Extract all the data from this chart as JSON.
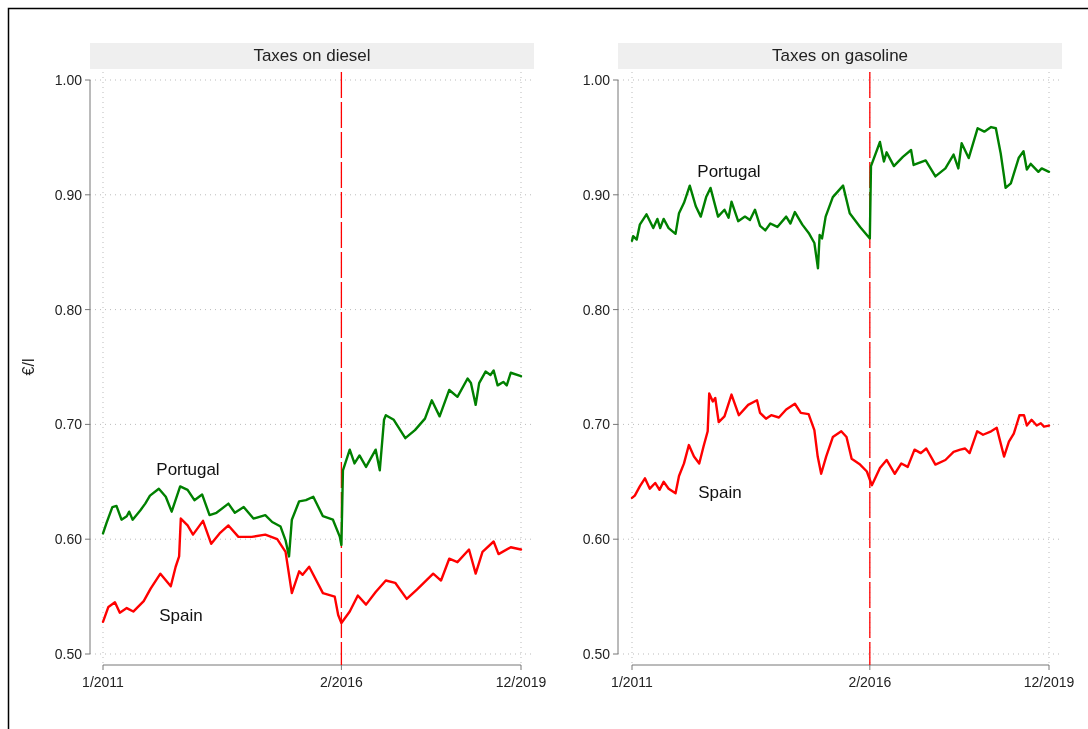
{
  "chart_data": [
    {
      "type": "line",
      "title": "Taxes on diesel",
      "ylabel": "€/l",
      "xlim": [
        "2011-01",
        "2019-12"
      ],
      "xticks": [
        {
          "value": "2011-01",
          "label": "1/2011"
        },
        {
          "value": "2016-02",
          "label": "2/2016"
        },
        {
          "value": "2019-12",
          "label": "12/2019"
        }
      ],
      "ylim": [
        0.5,
        1.0
      ],
      "yticks": [
        {
          "value": 0.5,
          "label": "0.50"
        },
        {
          "value": 0.6,
          "label": "0.60"
        },
        {
          "value": 0.7,
          "label": "0.70"
        },
        {
          "value": 0.8,
          "label": "0.80"
        },
        {
          "value": 0.9,
          "label": "0.90"
        },
        {
          "value": 1.0,
          "label": "1.00"
        }
      ],
      "grid": true,
      "ref_lines": [
        {
          "axis": "x",
          "value": "2016-02",
          "color": "#ff0000",
          "line_style": "dashed"
        }
      ],
      "series": [
        {
          "name": "Portugal",
          "color": "#008000",
          "x": [
            "2011-01-01",
            "2011-01-28",
            "2011-03-15",
            "2011-04-16",
            "2011-05-25",
            "2011-07-05",
            "2011-07-24",
            "2011-08-20",
            "2011-10-18",
            "2011-11-26",
            "2012-01-02",
            "2012-03-11",
            "2012-05-04",
            "2012-06-19",
            "2012-08-24",
            "2012-10-21",
            "2012-12-13",
            "2013-02-11",
            "2013-04-10",
            "2013-06-03",
            "2013-09-04",
            "2013-10-24",
            "2014-01-01",
            "2014-03-18",
            "2014-06-18",
            "2014-08-11",
            "2014-10-15",
            "2014-11-23",
            "2014-12-20",
            "2015-01-11",
            "2015-03-09",
            "2015-05-01",
            "2015-06-27",
            "2015-09-10",
            "2015-11-27",
            "2016-01-20",
            "2016-02-01",
            "2016-02-13",
            "2016-04-06",
            "2016-05-13",
            "2016-06-21",
            "2016-08-11",
            "2016-10-25",
            "2016-11-26",
            "2016-12-29",
            "2017-01-12",
            "2017-03-15",
            "2017-06-13",
            "2017-08-27",
            "2017-11-13",
            "2018-01-05",
            "2018-03-07",
            "2018-05-21",
            "2018-07-24",
            "2018-10-11",
            "2018-11-06",
            "2018-12-13",
            "2019-01-09",
            "2019-02-28",
            "2019-04-07",
            "2019-05-02",
            "2019-06-02",
            "2019-07-16",
            "2019-08-12",
            "2019-09-12",
            "2019-12-01"
          ],
          "values": [
            0.605,
            0.614,
            0.628,
            0.629,
            0.617,
            0.62,
            0.624,
            0.617,
            0.625,
            0.631,
            0.638,
            0.644,
            0.637,
            0.624,
            0.646,
            0.643,
            0.634,
            0.639,
            0.621,
            0.623,
            0.631,
            0.623,
            0.628,
            0.618,
            0.621,
            0.615,
            0.611,
            0.599,
            0.585,
            0.617,
            0.633,
            0.634,
            0.637,
            0.62,
            0.617,
            0.602,
            0.595,
            0.66,
            0.678,
            0.666,
            0.673,
            0.663,
            0.678,
            0.66,
            0.704,
            0.708,
            0.704,
            0.688,
            0.695,
            0.705,
            0.721,
            0.707,
            0.73,
            0.724,
            0.74,
            0.736,
            0.717,
            0.736,
            0.746,
            0.743,
            0.747,
            0.734,
            0.737,
            0.734,
            0.745,
            0.742
          ]
        },
        {
          "name": "Spain",
          "color": "#ff0000",
          "x": [
            "2011-01-01",
            "2011-02-12",
            "2011-04-04",
            "2011-05-12",
            "2011-07-05",
            "2011-08-25",
            "2011-11-14",
            "2012-01-07",
            "2012-03-23",
            "2012-06-12",
            "2012-07-20",
            "2012-08-16",
            "2012-08-29",
            "2012-10-21",
            "2012-12-02",
            "2013-02-18",
            "2013-04-23",
            "2013-06-27",
            "2013-09-04",
            "2013-11-21",
            "2014-03-05",
            "2014-06-18",
            "2014-09-19",
            "2014-11-23",
            "2015-01-11",
            "2015-03-09",
            "2015-04-05",
            "2015-05-26",
            "2015-09-10",
            "2015-12-11",
            "2016-01-07",
            "2016-02-01",
            "2016-04-06",
            "2016-06-08",
            "2016-08-11",
            "2016-10-25",
            "2017-01-12",
            "2017-03-26",
            "2017-06-24",
            "2017-09-11",
            "2018-01-16",
            "2018-03-18",
            "2018-05-21",
            "2018-07-24",
            "2018-10-22",
            "2018-12-13",
            "2019-02-04",
            "2019-05-02",
            "2019-06-09",
            "2019-09-12",
            "2019-12-01"
          ],
          "values": [
            0.528,
            0.541,
            0.545,
            0.536,
            0.54,
            0.537,
            0.546,
            0.557,
            0.57,
            0.559,
            0.576,
            0.585,
            0.618,
            0.612,
            0.604,
            0.616,
            0.596,
            0.605,
            0.612,
            0.602,
            0.602,
            0.604,
            0.6,
            0.589,
            0.553,
            0.572,
            0.569,
            0.576,
            0.553,
            0.55,
            0.534,
            0.527,
            0.537,
            0.551,
            0.543,
            0.554,
            0.564,
            0.562,
            0.548,
            0.556,
            0.57,
            0.564,
            0.583,
            0.58,
            0.591,
            0.57,
            0.589,
            0.598,
            0.587,
            0.593,
            0.591
          ]
        }
      ]
    },
    {
      "type": "line",
      "title": "Taxes on gasoline",
      "xlim": [
        "2011-01",
        "2019-12"
      ],
      "xticks": [
        {
          "value": "2011-01",
          "label": "1/2011"
        },
        {
          "value": "2016-02",
          "label": "2/2016"
        },
        {
          "value": "2019-12",
          "label": "12/2019"
        }
      ],
      "ylim": [
        0.5,
        1.0
      ],
      "yticks": [
        {
          "value": 0.5,
          "label": "0.50"
        },
        {
          "value": 0.6,
          "label": "0.60"
        },
        {
          "value": 0.7,
          "label": "0.70"
        },
        {
          "value": 0.8,
          "label": "0.80"
        },
        {
          "value": 0.9,
          "label": "0.90"
        },
        {
          "value": 1.0,
          "label": "1.00"
        }
      ],
      "grid": true,
      "ref_lines": [
        {
          "axis": "x",
          "value": "2016-02",
          "color": "#ff0000",
          "line_style": "dashed"
        }
      ],
      "series": [
        {
          "name": "Portugal",
          "color": "#008000",
          "x": [
            "2011-01-01",
            "2011-01-10",
            "2011-02-07",
            "2011-03-03",
            "2011-04-24",
            "2011-06-16",
            "2011-07-18",
            "2011-08-09",
            "2011-09-05",
            "2011-10-14",
            "2011-12-07",
            "2012-01-03",
            "2012-02-11",
            "2012-03-27",
            "2012-05-13",
            "2012-06-21",
            "2012-08-02",
            "2012-09-05",
            "2012-11-03",
            "2012-12-23",
            "2013-01-24",
            "2013-02-16",
            "2013-04-09",
            "2013-06-01",
            "2013-07-10",
            "2013-08-18",
            "2013-09-27",
            "2013-11-07",
            "2013-12-16",
            "2014-02-09",
            "2014-04-19",
            "2014-05-22",
            "2014-06-26",
            "2014-08-23",
            "2014-10-16",
            "2014-11-25",
            "2014-12-23",
            "2015-01-05",
            "2015-01-24",
            "2015-02-21",
            "2015-04-18",
            "2015-07-07",
            "2015-08-28",
            "2015-11-17",
            "2016-02-01",
            "2016-02-10",
            "2016-04-20",
            "2016-05-21",
            "2016-06-11",
            "2016-08-07",
            "2016-10-16",
            "2016-12-19",
            "2017-01-08",
            "2017-04-12",
            "2017-06-27",
            "2017-09-13",
            "2017-11-16",
            "2017-12-23",
            "2018-01-18",
            "2018-03-14",
            "2018-05-23",
            "2018-07-14",
            "2018-09-05",
            "2018-10-12",
            "2018-11-19",
            "2018-12-15",
            "2018-12-27",
            "2019-02-06",
            "2019-04-08",
            "2019-05-16",
            "2019-06-11",
            "2019-07-11",
            "2019-09-09",
            "2019-10-05",
            "2019-12-01"
          ],
          "values": [
            0.86,
            0.864,
            0.861,
            0.874,
            0.883,
            0.871,
            0.879,
            0.871,
            0.879,
            0.871,
            0.866,
            0.884,
            0.893,
            0.908,
            0.89,
            0.881,
            0.898,
            0.906,
            0.881,
            0.887,
            0.88,
            0.894,
            0.877,
            0.881,
            0.878,
            0.887,
            0.873,
            0.869,
            0.875,
            0.872,
            0.881,
            0.875,
            0.885,
            0.874,
            0.866,
            0.858,
            0.836,
            0.865,
            0.862,
            0.881,
            0.898,
            0.908,
            0.884,
            0.872,
            0.862,
            0.925,
            0.946,
            0.929,
            0.937,
            0.925,
            0.933,
            0.939,
            0.926,
            0.93,
            0.916,
            0.923,
            0.935,
            0.923,
            0.945,
            0.932,
            0.958,
            0.955,
            0.959,
            0.958,
            0.936,
            0.916,
            0.906,
            0.91,
            0.932,
            0.938,
            0.922,
            0.927,
            0.92,
            0.923,
            0.92
          ]
        },
        {
          "name": "Spain",
          "color": "#ff0000",
          "x": [
            "2011-01-01",
            "2011-01-23",
            "2011-03-03",
            "2011-04-12",
            "2011-05-20",
            "2011-07-01",
            "2011-08-04",
            "2011-09-05",
            "2011-10-14",
            "2011-12-07",
            "2012-01-03",
            "2012-02-11",
            "2012-03-20",
            "2012-04-29",
            "2012-06-09",
            "2012-07-13",
            "2012-08-14",
            "2012-08-26",
            "2012-09-23",
            "2012-10-12",
            "2012-11-08",
            "2012-12-23",
            "2013-02-16",
            "2013-04-14",
            "2013-06-26",
            "2013-09-03",
            "2013-09-27",
            "2013-11-12",
            "2013-12-23",
            "2014-02-21",
            "2014-04-19",
            "2014-06-26",
            "2014-08-11",
            "2014-10-11",
            "2014-11-25",
            "2014-12-21",
            "2015-01-17",
            "2015-02-25",
            "2015-04-18",
            "2015-06-23",
            "2015-08-03",
            "2015-09-12",
            "2015-11-17",
            "2016-01-09",
            "2016-02-17",
            "2016-04-20",
            "2016-06-11",
            "2016-08-14",
            "2016-10-04",
            "2016-11-23",
            "2017-01-15",
            "2017-03-05",
            "2017-04-17",
            "2017-06-27",
            "2017-09-13",
            "2017-11-16",
            "2018-01-07",
            "2018-02-14",
            "2018-03-21",
            "2018-05-19",
            "2018-07-04",
            "2018-09-05",
            "2018-10-19",
            "2018-12-15",
            "2019-01-22",
            "2019-03-01",
            "2019-04-15",
            "2019-05-20",
            "2019-06-11",
            "2019-07-18",
            "2019-08-27",
            "2019-09-28",
            "2019-10-23",
            "2019-12-01"
          ],
          "values": [
            0.636,
            0.638,
            0.646,
            0.653,
            0.644,
            0.649,
            0.643,
            0.65,
            0.644,
            0.64,
            0.655,
            0.666,
            0.682,
            0.672,
            0.666,
            0.681,
            0.694,
            0.727,
            0.72,
            0.723,
            0.702,
            0.707,
            0.726,
            0.708,
            0.717,
            0.721,
            0.71,
            0.705,
            0.708,
            0.706,
            0.713,
            0.718,
            0.71,
            0.709,
            0.695,
            0.672,
            0.657,
            0.672,
            0.689,
            0.694,
            0.689,
            0.67,
            0.665,
            0.659,
            0.647,
            0.662,
            0.669,
            0.657,
            0.666,
            0.663,
            0.678,
            0.675,
            0.679,
            0.665,
            0.669,
            0.676,
            0.678,
            0.679,
            0.675,
            0.694,
            0.691,
            0.694,
            0.697,
            0.672,
            0.685,
            0.692,
            0.708,
            0.708,
            0.699,
            0.704,
            0.699,
            0.701,
            0.698,
            0.699
          ]
        }
      ]
    }
  ]
}
